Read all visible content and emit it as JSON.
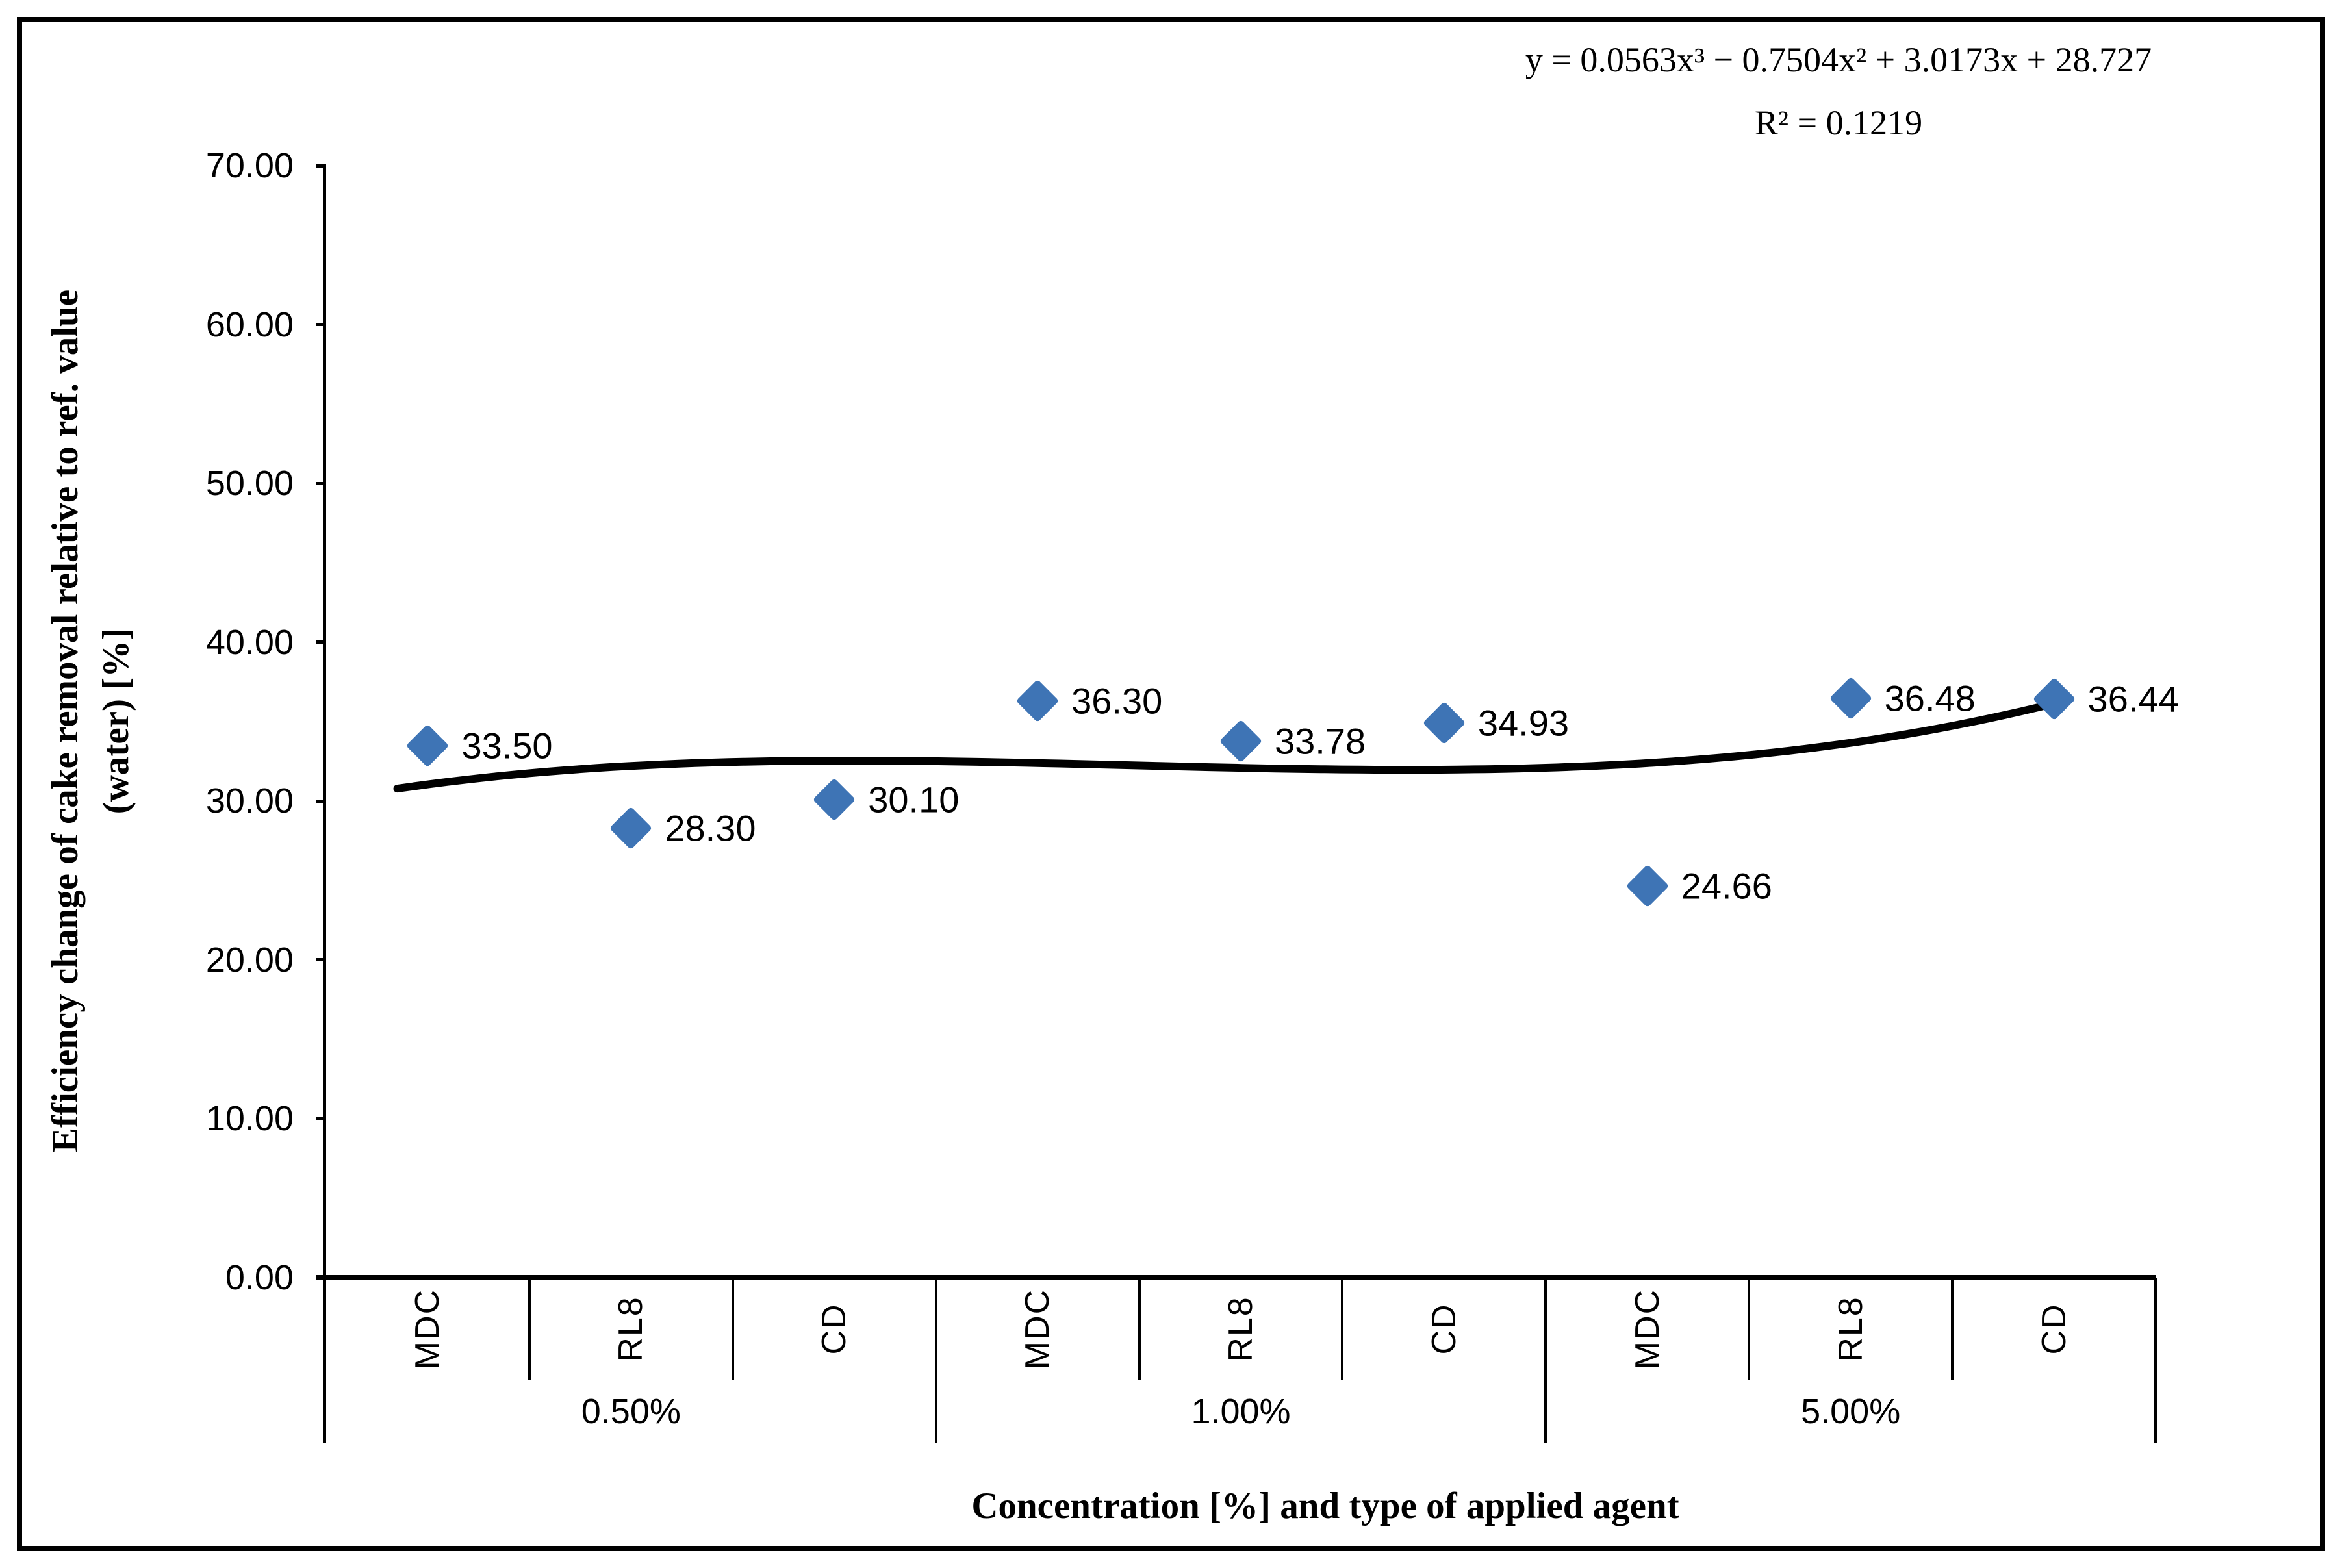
{
  "equation": {
    "line1": "y = 0.0563x³ − 0.7504x² + 3.0173x + 28.727",
    "line2": "R² = 0.1219"
  },
  "y_axis": {
    "title_line1": "Efficiency change of cake removal relative to ref. value",
    "title_line2": "(water) [%]",
    "ticks": [
      "70.00",
      "60.00",
      "50.00",
      "40.00",
      "30.00",
      "20.00",
      "10.00",
      "0.00"
    ]
  },
  "x_axis": {
    "title": "Concentration [%] and type of applied agent"
  },
  "chart_data": {
    "type": "scatter",
    "groups": [
      {
        "label": "0.50%",
        "agents": [
          "MDC",
          "RL8",
          "CD"
        ]
      },
      {
        "label": "1.00%",
        "agents": [
          "MDC",
          "RL8",
          "CD"
        ]
      },
      {
        "label": "5.00%",
        "agents": [
          "MDC",
          "RL8",
          "CD"
        ]
      }
    ],
    "series": [
      {
        "name": "Efficiency change of cake removal relative to ref. value (water)",
        "values": [
          33.5,
          28.3,
          30.1,
          36.3,
          33.78,
          34.93,
          24.66,
          36.48,
          36.44
        ]
      }
    ],
    "point_labels": [
      "33.50",
      "28.30",
      "30.10",
      "36.30",
      "33.78",
      "34.93",
      "24.66",
      "36.48",
      "36.44"
    ],
    "xlabel": "Concentration [%] and type of applied agent",
    "ylabel": "Efficiency change of cake removal relative to ref. value (water) [%]",
    "ylim": [
      0,
      70
    ],
    "y_tick_step": 10,
    "grid": false,
    "legend": false,
    "marker": {
      "shape": "diamond",
      "color": "#3E74B5"
    },
    "trendline": {
      "type": "polynomial",
      "order": 3,
      "coefficients": [
        0.0563,
        -0.7504,
        3.0173,
        28.727
      ],
      "r_squared": 0.1219,
      "color": "#000000",
      "values_at_categories": [
        31.05,
        32.21,
        32.55,
        32.39,
        32.09,
        31.98,
        32.39,
        33.67,
        36.14
      ],
      "equation_text": "y = 0.0563x³ − 0.7504x² + 3.0173x + 28.727",
      "r2_text": "R² = 0.1219"
    }
  }
}
